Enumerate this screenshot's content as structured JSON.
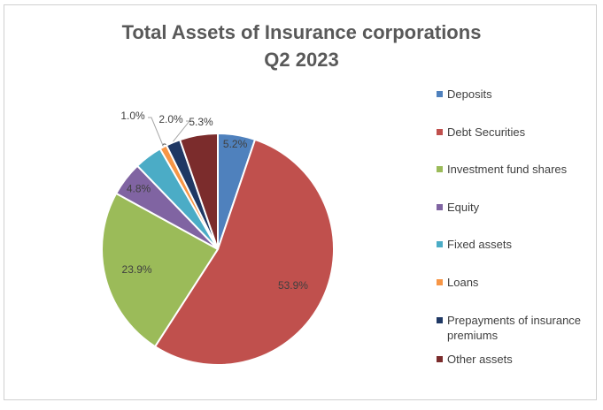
{
  "chart_data": {
    "type": "pie",
    "title": "Total Assets of Insurance corporations",
    "subtitle": "Q2 2023",
    "legend_position": "right",
    "series": [
      {
        "name": "Deposits",
        "value": 5.2,
        "label": "5.2%",
        "color": "#4f81bd"
      },
      {
        "name": "Debt Securities",
        "value": 53.9,
        "label": "53.9%",
        "color": "#c0504d"
      },
      {
        "name": "Investment fund shares",
        "value": 23.9,
        "label": "23.9%",
        "color": "#9bbb59"
      },
      {
        "name": "Equity",
        "value": 4.8,
        "label": "4.8%",
        "color": "#8064a2"
      },
      {
        "name": "Fixed assets",
        "value": 3.9,
        "label": "3.9%",
        "color": "#4bacc6"
      },
      {
        "name": "Loans",
        "value": 1.0,
        "label": "1.0%",
        "color": "#f79646"
      },
      {
        "name": "Prepayments of insurance premiums",
        "value": 2.0,
        "label": "2.0%",
        "color": "#1f3864"
      },
      {
        "name": "Other assets",
        "value": 5.3,
        "label": "5.3%",
        "color": "#7b2c2c"
      }
    ]
  }
}
